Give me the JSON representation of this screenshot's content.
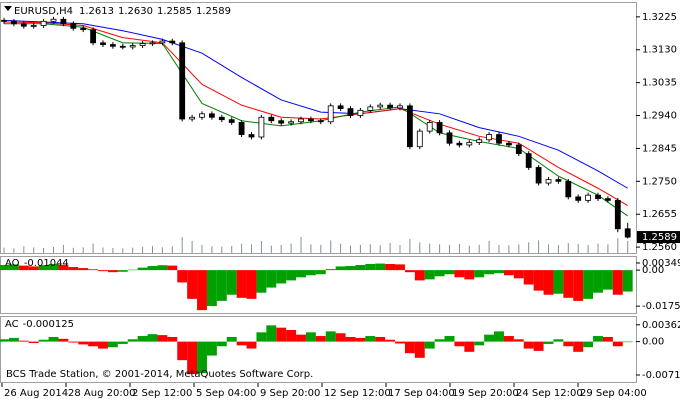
{
  "chart_data": [
    {
      "type": "candlestick",
      "title": "EURUSD,H4",
      "title_values": [
        "1.2613",
        "1.2630",
        "1.2585",
        "1.2589"
      ],
      "candles": {
        "open": [
          1.3215,
          1.3212,
          1.3205,
          1.3198,
          1.32,
          1.3212,
          1.3218,
          1.3205,
          1.3192,
          1.3188,
          1.315,
          1.3145,
          1.314,
          1.3138,
          1.3142,
          1.3148,
          1.315,
          1.3155,
          1.315,
          1.293,
          1.2935,
          1.2945,
          1.2935,
          1.2928,
          1.292,
          1.2885,
          1.2878,
          1.2935,
          1.2925,
          1.2918,
          1.2922,
          1.293,
          1.2925,
          1.2922,
          1.2968,
          1.296,
          1.294,
          1.2955,
          1.2965,
          1.297,
          1.2962,
          1.2968,
          1.285,
          1.2895,
          1.292,
          1.289,
          1.286,
          1.2855,
          1.2862,
          1.287,
          1.2885,
          1.286,
          1.2855,
          1.283,
          1.279,
          1.2745,
          1.2755,
          1.275,
          1.2705,
          1.2695,
          1.271,
          1.27,
          1.2695,
          1.2613
        ],
        "high": [
          1.3222,
          1.3219,
          1.3212,
          1.3207,
          1.3219,
          1.3225,
          1.3225,
          1.3212,
          1.3199,
          1.3195,
          1.3157,
          1.3152,
          1.3147,
          1.3149,
          1.3155,
          1.3157,
          1.3162,
          1.3162,
          1.3157,
          1.2942,
          1.2952,
          1.2952,
          1.2942,
          1.2935,
          1.2927,
          1.2892,
          1.2942,
          1.2942,
          1.2932,
          1.2929,
          1.2937,
          1.2937,
          1.2932,
          1.2975,
          1.2975,
          1.2967,
          1.2962,
          1.2972,
          1.2977,
          1.2977,
          1.2975,
          1.2975,
          1.2902,
          1.2927,
          1.2927,
          1.2897,
          1.2867,
          1.2869,
          1.2877,
          1.2892,
          1.2892,
          1.2867,
          1.2862,
          1.2837,
          1.2797,
          1.2762,
          1.2762,
          1.2757,
          1.2712,
          1.2717,
          1.2717,
          1.2707,
          1.2702,
          1.263
        ],
        "low": [
          1.3205,
          1.3198,
          1.3191,
          1.3191,
          1.3193,
          1.3205,
          1.3198,
          1.3185,
          1.3181,
          1.3143,
          1.3138,
          1.3133,
          1.3131,
          1.3131,
          1.3135,
          1.3141,
          1.3143,
          1.3143,
          1.2923,
          1.2923,
          1.2928,
          1.2928,
          1.2921,
          1.2913,
          1.2878,
          1.2871,
          1.2871,
          1.2918,
          1.2911,
          1.2911,
          1.2915,
          1.2918,
          1.2915,
          1.2915,
          1.2953,
          1.2933,
          1.2933,
          1.2948,
          1.2958,
          1.2955,
          1.2955,
          1.2843,
          1.2843,
          1.2888,
          1.2883,
          1.2853,
          1.2848,
          1.2848,
          1.2855,
          1.2863,
          1.2853,
          1.2848,
          1.2823,
          1.2783,
          1.2738,
          1.2738,
          1.2743,
          1.2698,
          1.2688,
          1.2688,
          1.2693,
          1.2688,
          1.2603,
          1.2585
        ],
        "close": [
          1.3212,
          1.3205,
          1.3198,
          1.32,
          1.3212,
          1.3218,
          1.3205,
          1.3192,
          1.3188,
          1.315,
          1.3145,
          1.314,
          1.3138,
          1.3142,
          1.3148,
          1.315,
          1.3155,
          1.315,
          1.293,
          1.2935,
          1.2945,
          1.2935,
          1.2928,
          1.292,
          1.2885,
          1.2878,
          1.2935,
          1.2925,
          1.2918,
          1.2922,
          1.293,
          1.2925,
          1.2922,
          1.2968,
          1.296,
          1.294,
          1.2955,
          1.2965,
          1.297,
          1.2962,
          1.2968,
          1.285,
          1.2895,
          1.292,
          1.289,
          1.286,
          1.2855,
          1.2862,
          1.287,
          1.2885,
          1.286,
          1.2855,
          1.283,
          1.279,
          1.2745,
          1.2755,
          1.275,
          1.2705,
          1.2695,
          1.271,
          1.27,
          1.2695,
          1.2613,
          1.2589
        ]
      },
      "up_color": "#ffffff",
      "down_color": "#000000",
      "line_index": [
        0,
        4,
        8,
        12,
        16,
        20,
        24,
        28,
        32,
        36,
        40,
        44,
        48,
        52,
        56,
        60,
        63
      ],
      "lines": [
        {
          "color": "#0000ff",
          "values": [
            1.3215,
            1.321,
            1.3205,
            1.3185,
            1.316,
            1.312,
            1.305,
            1.2985,
            1.295,
            1.2945,
            1.296,
            1.2945,
            1.2905,
            1.288,
            1.284,
            1.278,
            1.273
          ]
        },
        {
          "color": "#ff0000",
          "values": [
            1.321,
            1.3208,
            1.32,
            1.3165,
            1.315,
            1.303,
            1.297,
            1.2935,
            1.293,
            1.2945,
            1.296,
            1.2915,
            1.288,
            1.286,
            1.279,
            1.273,
            1.268
          ]
        },
        {
          "color": "#008000",
          "values": [
            1.3205,
            1.3205,
            1.3195,
            1.315,
            1.3148,
            1.2975,
            1.2925,
            1.291,
            1.2925,
            1.295,
            1.2965,
            1.289,
            1.2865,
            1.2845,
            1.2765,
            1.271,
            1.265
          ]
        }
      ],
      "volume": [
        4000,
        3500,
        5000,
        4200,
        3800,
        4500,
        6000,
        3900,
        4200,
        7000,
        4100,
        3800,
        3500,
        4000,
        4600,
        5200,
        4300,
        5000,
        12000,
        9000,
        6000,
        5000,
        4800,
        5200,
        7000,
        6500,
        9000,
        5500,
        6000,
        7000,
        12000,
        6500,
        6000,
        9500,
        7000,
        5500,
        6000,
        6500,
        5800,
        7500,
        6000,
        10500,
        8000,
        7000,
        6500,
        6000,
        6800,
        5500,
        6200,
        9000,
        6000,
        5800,
        6500,
        8000,
        9500,
        6500,
        6000,
        7500,
        6800,
        6000,
        7000,
        6500,
        11000,
        9000
      ],
      "volume_lim": [
        0,
        30000
      ],
      "volume_color": "#8090a0",
      "ylim": [
        1.2543,
        1.3265
      ],
      "yticks": [
        1.3225,
        {
          "value": 1.313,
          "label": "1.3130"
        },
        1.3035,
        {
          "value": 1.294,
          "label": "1.2940"
        },
        1.2845,
        {
          "value": 1.275,
          "label": "1.2750"
        },
        1.2655,
        {
          "value": 1.256,
          "label": "1.2560"
        }
      ],
      "last_price": 1.2589,
      "x_labels": [
        "26 Aug 2014",
        "28 Aug 20:00",
        "2 Sep 12:00",
        "5 Sep 04:00",
        "9 Sep 20:00",
        "12 Sep 12:00",
        "17 Sep 04:00",
        "19 Sep 20:00",
        "24 Sep 12:00",
        "29 Sep 04:00"
      ]
    },
    {
      "type": "bar",
      "title": "AO",
      "title_value": -0.01044,
      "values": [
        0.0025,
        0.0028,
        0.0022,
        0.0018,
        0.0024,
        0.003,
        0.0026,
        0.0015,
        0.001,
        0.0004,
        -0.0005,
        -0.001,
        -0.0008,
        0.0002,
        0.0012,
        0.002,
        0.0024,
        0.0022,
        -0.006,
        -0.014,
        -0.0195,
        -0.0175,
        -0.015,
        -0.012,
        -0.0135,
        -0.014,
        -0.011,
        -0.0085,
        -0.0065,
        -0.005,
        -0.0035,
        -0.0025,
        -0.002,
        0.0005,
        0.0018,
        0.002,
        0.0025,
        0.003,
        0.0032,
        0.003,
        0.0028,
        -0.001,
        -0.005,
        -0.0045,
        -0.003,
        -0.002,
        -0.0035,
        -0.0045,
        -0.0035,
        -0.002,
        -0.0015,
        -0.0025,
        -0.004,
        -0.007,
        -0.01,
        -0.012,
        -0.0115,
        -0.0135,
        -0.015,
        -0.014,
        -0.011,
        -0.0095,
        -0.012,
        -0.01044
      ],
      "up_color": "#00a000",
      "down_color": "#ff0000",
      "ylim": [
        -0.0209,
        0.0064
      ],
      "yticks": [
        0.00349,
        {
          "value": 0,
          "label": "0.00"
        },
        -0.01756
      ]
    },
    {
      "type": "bar",
      "title": "AC",
      "title_value": -0.000125,
      "footer": "BCS Trade Station, © 2001-2014, MetaQuotes Software Corp.",
      "values": [
        0.0005,
        0.0008,
        0.0002,
        -0.0003,
        0.0004,
        0.001,
        0.0006,
        -0.0002,
        -0.0006,
        -0.001,
        -0.0015,
        -0.0012,
        -0.0005,
        0.0005,
        0.0012,
        0.0016,
        0.0014,
        0.001,
        -0.004,
        -0.007,
        -0.0068,
        -0.003,
        -0.001,
        0.001,
        -0.0008,
        -0.0015,
        0.002,
        0.0035,
        0.003,
        0.0025,
        0.0015,
        0.002,
        0.0012,
        0.0022,
        0.0018,
        0.001,
        0.0008,
        0.0012,
        0.001,
        0.0004,
        -0.0004,
        -0.0025,
        -0.0035,
        -0.0015,
        0.0005,
        0.0012,
        -0.001,
        -0.0022,
        -0.0008,
        0.0015,
        0.0022,
        0.0012,
        0.0005,
        -0.0015,
        -0.002,
        -0.0005,
        0.0005,
        -0.001,
        -0.0022,
        -0.0012,
        0.0012,
        0.001,
        -0.001,
        -0.000125
      ],
      "up_color": "#00a000",
      "down_color": "#ff0000",
      "ylim": [
        -0.0087,
        0.0053
      ],
      "yticks": [
        0.00362,
        {
          "value": 0,
          "label": "0.00"
        },
        -0.00719
      ]
    }
  ]
}
